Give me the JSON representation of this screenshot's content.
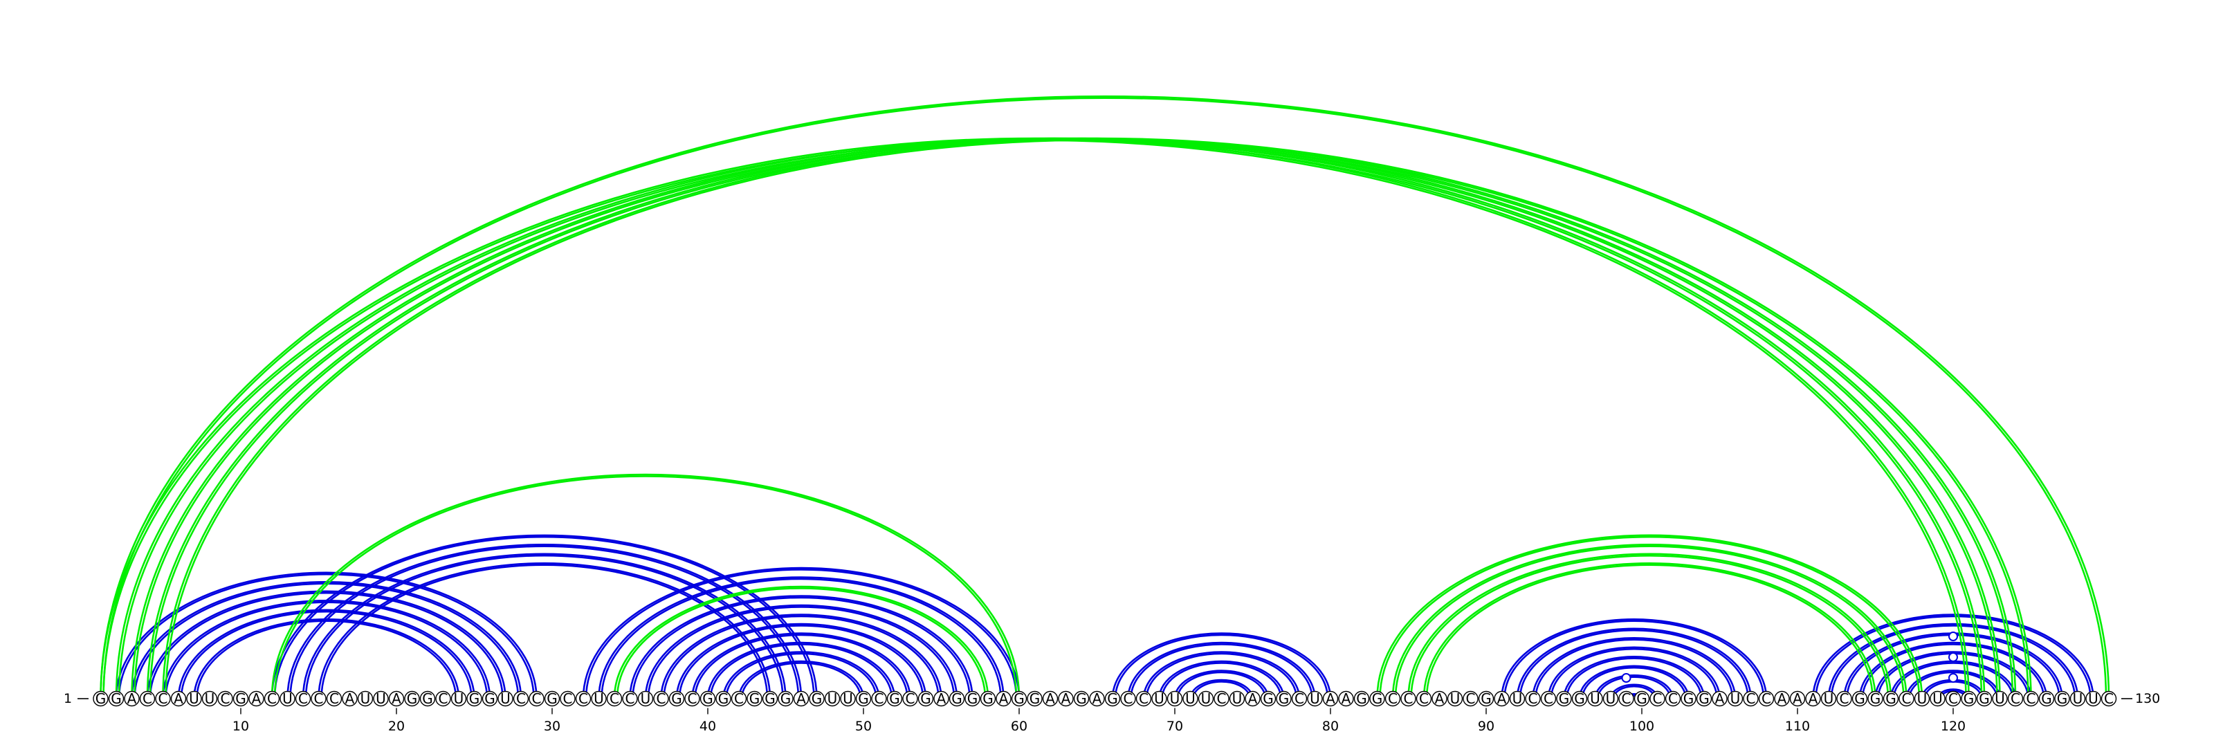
{
  "sequence": "GGACCAUUCGACUCCCAUUAGGCUGGUCCGCCUCCUCGCGGCGGGAGUUGCGCGAGGGAGGAAGAGCCUUUUCUAGGCUAAGGCCCAUCGAUCCGGUUCGCCGGAUCCAAAUCGGGCUUCGGUCCGGUUC",
  "start_label": "1",
  "end_label": "130",
  "ticks": [
    "10",
    "20",
    "30",
    "40",
    "50",
    "60",
    "70",
    "80",
    "90",
    "100",
    "110",
    "120"
  ],
  "colors": {
    "pair_blue": "#0000e0",
    "pair_green": "#00ee00"
  },
  "pairs": [
    {
      "i": 1,
      "j": 121,
      "color": "green"
    },
    {
      "i": 2,
      "j": 122,
      "color": "green"
    },
    {
      "i": 3,
      "j": 123,
      "color": "green"
    },
    {
      "i": 4,
      "j": 124,
      "color": "green"
    },
    {
      "i": 5,
      "j": 125,
      "color": "green"
    },
    {
      "i": 1,
      "j": 130,
      "color": "green"
    },
    {
      "i": 12,
      "j": 60,
      "color": "green"
    },
    {
      "i": 34,
      "j": 58,
      "color": "green"
    },
    {
      "i": 83,
      "j": 118,
      "color": "green"
    },
    {
      "i": 84,
      "j": 117,
      "color": "green"
    },
    {
      "i": 85,
      "j": 116,
      "color": "green"
    },
    {
      "i": 86,
      "j": 115,
      "color": "green"
    },
    {
      "i": 2,
      "j": 29,
      "color": "blue"
    },
    {
      "i": 3,
      "j": 28,
      "color": "blue"
    },
    {
      "i": 4,
      "j": 27,
      "color": "blue"
    },
    {
      "i": 5,
      "j": 26,
      "color": "blue"
    },
    {
      "i": 6,
      "j": 25,
      "color": "blue"
    },
    {
      "i": 7,
      "j": 24,
      "color": "blue"
    },
    {
      "i": 12,
      "j": 47,
      "color": "blue"
    },
    {
      "i": 13,
      "j": 46,
      "color": "blue"
    },
    {
      "i": 14,
      "j": 45,
      "color": "blue"
    },
    {
      "i": 15,
      "j": 44,
      "color": "blue"
    },
    {
      "i": 32,
      "j": 60,
      "color": "blue"
    },
    {
      "i": 33,
      "j": 59,
      "color": "blue"
    },
    {
      "i": 35,
      "j": 57,
      "color": "blue"
    },
    {
      "i": 36,
      "j": 56,
      "color": "blue"
    },
    {
      "i": 37,
      "j": 55,
      "color": "blue"
    },
    {
      "i": 38,
      "j": 54,
      "color": "blue"
    },
    {
      "i": 39,
      "j": 53,
      "color": "blue"
    },
    {
      "i": 40,
      "j": 52,
      "color": "blue"
    },
    {
      "i": 41,
      "j": 51,
      "color": "blue"
    },
    {
      "i": 42,
      "j": 50,
      "color": "blue"
    },
    {
      "i": 66,
      "j": 80,
      "color": "blue"
    },
    {
      "i": 67,
      "j": 79,
      "color": "blue"
    },
    {
      "i": 68,
      "j": 78,
      "color": "blue"
    },
    {
      "i": 69,
      "j": 77,
      "color": "blue"
    },
    {
      "i": 70,
      "j": 76,
      "color": "blue"
    },
    {
      "i": 71,
      "j": 75,
      "color": "blue"
    },
    {
      "i": 91,
      "j": 108,
      "color": "blue"
    },
    {
      "i": 92,
      "j": 107,
      "color": "blue"
    },
    {
      "i": 93,
      "j": 106,
      "color": "blue"
    },
    {
      "i": 94,
      "j": 105,
      "color": "blue"
    },
    {
      "i": 95,
      "j": 104,
      "color": "blue"
    },
    {
      "i": 96,
      "j": 103,
      "color": "blue"
    },
    {
      "i": 97,
      "j": 102,
      "color": "blue"
    },
    {
      "i": 98,
      "j": 101,
      "color": "blue"
    },
    {
      "i": 99,
      "j": 100,
      "color": "blue"
    },
    {
      "i": 111,
      "j": 129,
      "color": "blue"
    },
    {
      "i": 112,
      "j": 128,
      "color": "blue"
    },
    {
      "i": 113,
      "j": 127,
      "color": "blue"
    },
    {
      "i": 114,
      "j": 126,
      "color": "blue"
    },
    {
      "i": 115,
      "j": 125,
      "color": "blue"
    },
    {
      "i": 116,
      "j": 124,
      "color": "blue"
    },
    {
      "i": 117,
      "j": 123,
      "color": "blue"
    },
    {
      "i": 118,
      "j": 122,
      "color": "blue"
    },
    {
      "i": 119,
      "j": 121,
      "color": "blue"
    }
  ],
  "loop_markers": [
    99,
    120,
    120,
    120
  ]
}
